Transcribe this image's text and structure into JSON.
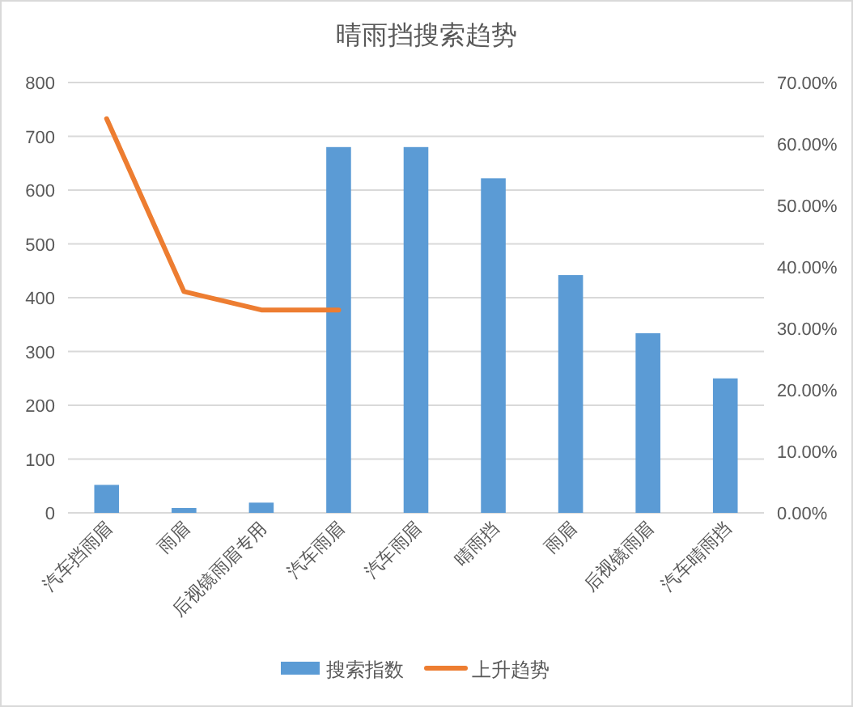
{
  "chart_data": {
    "type": "bar",
    "title": "晴雨挡搜索趋势",
    "categories": [
      "汽车挡雨眉",
      "雨眉",
      "后视镜雨眉专用",
      "汽车雨眉",
      "汽车雨眉",
      "晴雨挡",
      "雨眉",
      "后视镜雨眉",
      "汽车晴雨挡"
    ],
    "series": [
      {
        "name": "搜索指数",
        "color": "#5b9bd5",
        "values": [
          52,
          9,
          19,
          680,
          680,
          622,
          442,
          334,
          250
        ]
      },
      {
        "name": "上升趋势",
        "type": "line",
        "axis": "y2",
        "color": "#ed7d31",
        "values": [
          64.1,
          36.0,
          33.0,
          33.0,
          null,
          null,
          null,
          null,
          null
        ]
      }
    ],
    "ylim": [
      0,
      800
    ],
    "yticks": [
      0,
      100,
      200,
      300,
      400,
      500,
      600,
      700,
      800
    ],
    "y2lim": [
      0,
      70
    ],
    "y2ticks": [
      {
        "value": 0,
        "label": "0.00%"
      },
      {
        "value": 10,
        "label": "10.00%"
      },
      {
        "value": 20,
        "label": "20.00%"
      },
      {
        "value": 30,
        "label": "30.00%"
      },
      {
        "value": 40,
        "label": "40.00%"
      },
      {
        "value": 50,
        "label": "50.00%"
      },
      {
        "value": 60,
        "label": "60.00%"
      },
      {
        "value": 70,
        "label": "70.00%"
      }
    ],
    "grid": "y",
    "legend": "bottom",
    "marker": "none"
  }
}
